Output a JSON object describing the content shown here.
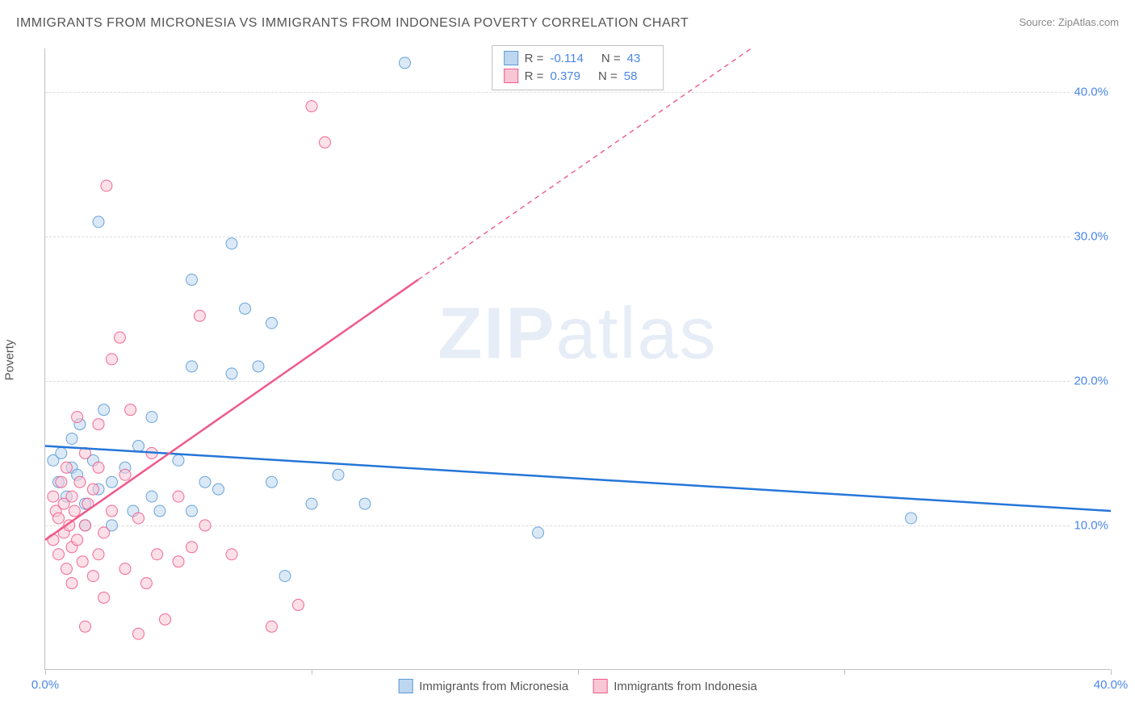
{
  "title": "IMMIGRANTS FROM MICRONESIA VS IMMIGRANTS FROM INDONESIA POVERTY CORRELATION CHART",
  "source": "Source: ZipAtlas.com",
  "watermark_a": "ZIP",
  "watermark_b": "atlas",
  "ylabel": "Poverty",
  "chart": {
    "type": "scatter",
    "xlim": [
      0,
      40
    ],
    "ylim": [
      0,
      43
    ],
    "xticks": [
      0,
      10,
      20,
      30,
      40
    ],
    "xtick_labels": [
      "0.0%",
      "",
      "",
      "",
      "40.0%"
    ],
    "yticks": [
      10,
      20,
      30,
      40
    ],
    "ytick_labels": [
      "10.0%",
      "20.0%",
      "30.0%",
      "40.0%"
    ],
    "grid_color": "#dcdcdc",
    "axis_color": "#c0c0c0",
    "background_color": "#ffffff",
    "tick_label_color": "#4a86e8",
    "marker_radius": 7,
    "marker_opacity": 0.55,
    "series": [
      {
        "name": "Immigrants from Micronesia",
        "color": "#5b9bd5",
        "fill": "#bdd7f0",
        "R": "-0.114",
        "N": "43",
        "line": {
          "x1": 0,
          "y1": 15.5,
          "x2": 40,
          "y2": 11,
          "width": 2.5,
          "dash": "none"
        },
        "points": [
          [
            0.3,
            14.5
          ],
          [
            0.5,
            13.0
          ],
          [
            0.6,
            15.0
          ],
          [
            0.8,
            12.0
          ],
          [
            1.0,
            16.0
          ],
          [
            1.0,
            14.0
          ],
          [
            1.2,
            13.5
          ],
          [
            1.3,
            17.0
          ],
          [
            1.5,
            11.5
          ],
          [
            1.5,
            10.0
          ],
          [
            1.8,
            14.5
          ],
          [
            2.0,
            31.0
          ],
          [
            2.0,
            12.5
          ],
          [
            2.2,
            18.0
          ],
          [
            2.5,
            10.0
          ],
          [
            2.5,
            13.0
          ],
          [
            3.0,
            14.0
          ],
          [
            3.3,
            11.0
          ],
          [
            3.5,
            15.5
          ],
          [
            4.0,
            17.5
          ],
          [
            4.0,
            12.0
          ],
          [
            4.3,
            11.0
          ],
          [
            5.0,
            14.5
          ],
          [
            5.5,
            27.0
          ],
          [
            5.5,
            21.0
          ],
          [
            5.5,
            11.0
          ],
          [
            6.0,
            13.0
          ],
          [
            6.5,
            12.5
          ],
          [
            7.0,
            29.5
          ],
          [
            7.0,
            20.5
          ],
          [
            7.5,
            25.0
          ],
          [
            8.0,
            21.0
          ],
          [
            8.5,
            24.0
          ],
          [
            8.5,
            13.0
          ],
          [
            9.0,
            6.5
          ],
          [
            10.0,
            11.5
          ],
          [
            11.0,
            13.5
          ],
          [
            12.0,
            11.5
          ],
          [
            13.5,
            42.0
          ],
          [
            18.5,
            9.5
          ],
          [
            32.5,
            10.5
          ]
        ]
      },
      {
        "name": "Immigrants from Indonesia",
        "color": "#ef5a8a",
        "fill": "#f9c6d6",
        "R": "0.379",
        "N": "58",
        "line_solid": {
          "x1": 0,
          "y1": 9.0,
          "x2": 14,
          "y2": 27.0,
          "width": 2.5
        },
        "line_dash": {
          "x1": 14,
          "y1": 27.0,
          "x2": 26.5,
          "y2": 43.0,
          "width": 1.4
        },
        "points": [
          [
            0.3,
            9.0
          ],
          [
            0.3,
            12.0
          ],
          [
            0.4,
            11.0
          ],
          [
            0.5,
            8.0
          ],
          [
            0.5,
            10.5
          ],
          [
            0.6,
            13.0
          ],
          [
            0.7,
            9.5
          ],
          [
            0.7,
            11.5
          ],
          [
            0.8,
            7.0
          ],
          [
            0.8,
            14.0
          ],
          [
            0.9,
            10.0
          ],
          [
            1.0,
            8.5
          ],
          [
            1.0,
            12.0
          ],
          [
            1.0,
            6.0
          ],
          [
            1.1,
            11.0
          ],
          [
            1.2,
            9.0
          ],
          [
            1.2,
            17.5
          ],
          [
            1.3,
            13.0
          ],
          [
            1.4,
            7.5
          ],
          [
            1.5,
            10.0
          ],
          [
            1.5,
            15.0
          ],
          [
            1.5,
            3.0
          ],
          [
            1.6,
            11.5
          ],
          [
            1.8,
            6.5
          ],
          [
            1.8,
            12.5
          ],
          [
            2.0,
            8.0
          ],
          [
            2.0,
            14.0
          ],
          [
            2.0,
            17.0
          ],
          [
            2.2,
            5.0
          ],
          [
            2.2,
            9.5
          ],
          [
            2.3,
            33.5
          ],
          [
            2.5,
            11.0
          ],
          [
            2.5,
            21.5
          ],
          [
            2.8,
            23.0
          ],
          [
            3.0,
            7.0
          ],
          [
            3.0,
            13.5
          ],
          [
            3.2,
            18.0
          ],
          [
            3.5,
            2.5
          ],
          [
            3.5,
            10.5
          ],
          [
            3.8,
            6.0
          ],
          [
            4.0,
            15.0
          ],
          [
            4.2,
            8.0
          ],
          [
            4.5,
            3.5
          ],
          [
            5.0,
            7.5
          ],
          [
            5.0,
            12.0
          ],
          [
            5.5,
            8.5
          ],
          [
            5.8,
            24.5
          ],
          [
            6.0,
            10.0
          ],
          [
            7.0,
            8.0
          ],
          [
            8.5,
            3.0
          ],
          [
            9.5,
            4.5
          ],
          [
            10.0,
            39.0
          ],
          [
            10.5,
            36.5
          ]
        ]
      }
    ]
  },
  "legend_top": {
    "r_label": "R =",
    "n_label": "N ="
  }
}
